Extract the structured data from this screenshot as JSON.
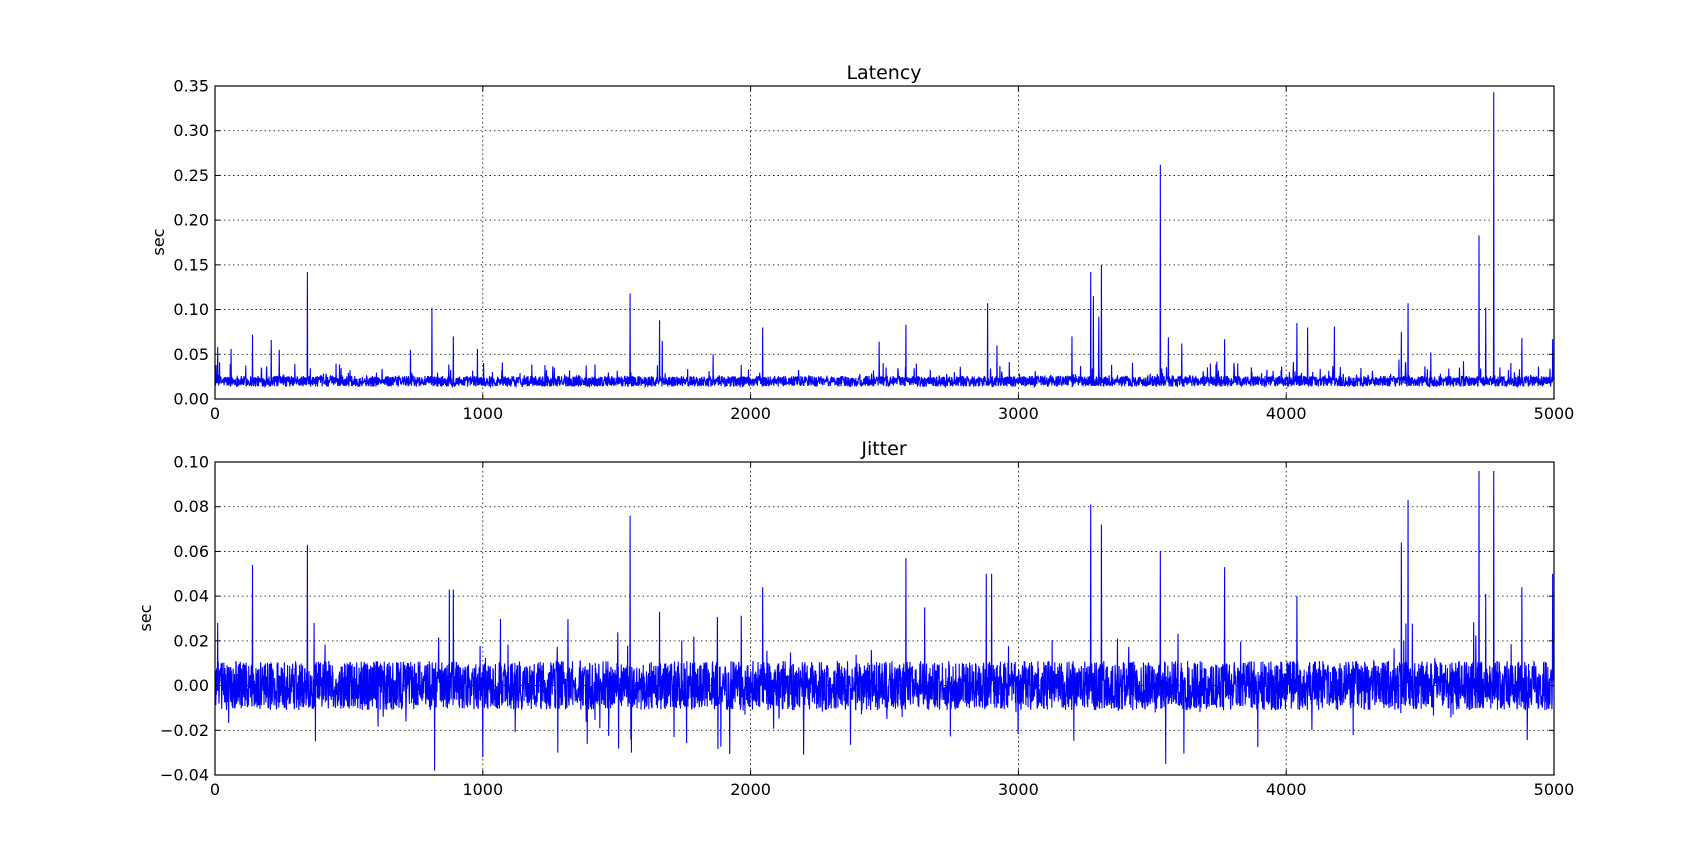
{
  "figure": {
    "background": "#ffffff",
    "line_color": "#0000ff",
    "grid_color": "#000000"
  },
  "chart_data": [
    {
      "type": "line",
      "title": "Latency",
      "xlabel": "",
      "ylabel": "sec",
      "xlim": [
        0,
        5000
      ],
      "ylim": [
        0,
        0.35
      ],
      "x_ticks": [
        0,
        1000,
        2000,
        3000,
        4000,
        5000
      ],
      "y_ticks": [
        0.0,
        0.05,
        0.1,
        0.15,
        0.2,
        0.25,
        0.3,
        0.35
      ],
      "x_tick_labels": [
        "0",
        "1000",
        "2000",
        "3000",
        "4000",
        "5000"
      ],
      "y_tick_labels": [
        "0.00",
        "0.05",
        "0.10",
        "0.15",
        "0.20",
        "0.25",
        "0.30",
        "0.35"
      ],
      "grid": true,
      "x_step": 1,
      "baseline": 0.018,
      "noise": 0.01,
      "floor": 0.008,
      "spikes": [
        {
          "x": 10,
          "y": 0.058
        },
        {
          "x": 60,
          "y": 0.056
        },
        {
          "x": 140,
          "y": 0.072
        },
        {
          "x": 210,
          "y": 0.066
        },
        {
          "x": 240,
          "y": 0.055
        },
        {
          "x": 345,
          "y": 0.142
        },
        {
          "x": 730,
          "y": 0.055
        },
        {
          "x": 810,
          "y": 0.102
        },
        {
          "x": 890,
          "y": 0.07
        },
        {
          "x": 980,
          "y": 0.056
        },
        {
          "x": 1550,
          "y": 0.118
        },
        {
          "x": 1660,
          "y": 0.088
        },
        {
          "x": 1670,
          "y": 0.065
        },
        {
          "x": 1860,
          "y": 0.05
        },
        {
          "x": 2045,
          "y": 0.08
        },
        {
          "x": 2480,
          "y": 0.064
        },
        {
          "x": 2580,
          "y": 0.083
        },
        {
          "x": 2885,
          "y": 0.107
        },
        {
          "x": 2920,
          "y": 0.06
        },
        {
          "x": 3200,
          "y": 0.07
        },
        {
          "x": 3270,
          "y": 0.142
        },
        {
          "x": 3280,
          "y": 0.115
        },
        {
          "x": 3300,
          "y": 0.092
        },
        {
          "x": 3310,
          "y": 0.15
        },
        {
          "x": 3530,
          "y": 0.262
        },
        {
          "x": 3560,
          "y": 0.069
        },
        {
          "x": 3610,
          "y": 0.062
        },
        {
          "x": 3770,
          "y": 0.067
        },
        {
          "x": 4040,
          "y": 0.085
        },
        {
          "x": 4080,
          "y": 0.08
        },
        {
          "x": 4180,
          "y": 0.081
        },
        {
          "x": 4430,
          "y": 0.075
        },
        {
          "x": 4455,
          "y": 0.107
        },
        {
          "x": 4540,
          "y": 0.052
        },
        {
          "x": 4720,
          "y": 0.183
        },
        {
          "x": 4745,
          "y": 0.102
        },
        {
          "x": 4775,
          "y": 0.343
        },
        {
          "x": 4880,
          "y": 0.068
        },
        {
          "x": 4995,
          "y": 0.067
        }
      ]
    },
    {
      "type": "line",
      "title": "Jitter",
      "xlabel": "",
      "ylabel": "sec",
      "xlim": [
        0,
        5000
      ],
      "ylim": [
        -0.04,
        0.1
      ],
      "x_ticks": [
        0,
        1000,
        2000,
        3000,
        4000,
        5000
      ],
      "y_ticks": [
        -0.04,
        -0.02,
        0.0,
        0.02,
        0.04,
        0.06,
        0.08,
        0.1
      ],
      "x_tick_labels": [
        "0",
        "1000",
        "2000",
        "3000",
        "4000",
        "5000"
      ],
      "y_tick_labels": [
        "−0.04",
        "−0.02",
        "0.00",
        "0.02",
        "0.04",
        "0.06",
        "0.08",
        "0.10"
      ],
      "grid": true,
      "x_step": 1,
      "baseline": 0.0,
      "noise": 0.011,
      "floor": -0.034,
      "spikes": [
        {
          "x": 10,
          "y": 0.028
        },
        {
          "x": 140,
          "y": 0.054
        },
        {
          "x": 345,
          "y": 0.063
        },
        {
          "x": 370,
          "y": 0.028
        },
        {
          "x": 820,
          "y": -0.038
        },
        {
          "x": 875,
          "y": 0.043
        },
        {
          "x": 890,
          "y": 0.043
        },
        {
          "x": 1000,
          "y": -0.032
        },
        {
          "x": 1550,
          "y": 0.076
        },
        {
          "x": 1555,
          "y": -0.03
        },
        {
          "x": 1660,
          "y": 0.033
        },
        {
          "x": 2045,
          "y": 0.044
        },
        {
          "x": 2580,
          "y": 0.057
        },
        {
          "x": 2650,
          "y": 0.035
        },
        {
          "x": 2880,
          "y": 0.05
        },
        {
          "x": 2900,
          "y": 0.05
        },
        {
          "x": 3270,
          "y": 0.081
        },
        {
          "x": 3310,
          "y": 0.072
        },
        {
          "x": 3530,
          "y": 0.06
        },
        {
          "x": 3550,
          "y": -0.035
        },
        {
          "x": 3770,
          "y": 0.053
        },
        {
          "x": 4040,
          "y": 0.04
        },
        {
          "x": 4430,
          "y": 0.064
        },
        {
          "x": 4455,
          "y": 0.083
        },
        {
          "x": 4720,
          "y": 0.096
        },
        {
          "x": 4745,
          "y": 0.041
        },
        {
          "x": 4775,
          "y": 0.096
        },
        {
          "x": 4880,
          "y": 0.044
        },
        {
          "x": 4995,
          "y": 0.05
        }
      ]
    }
  ]
}
